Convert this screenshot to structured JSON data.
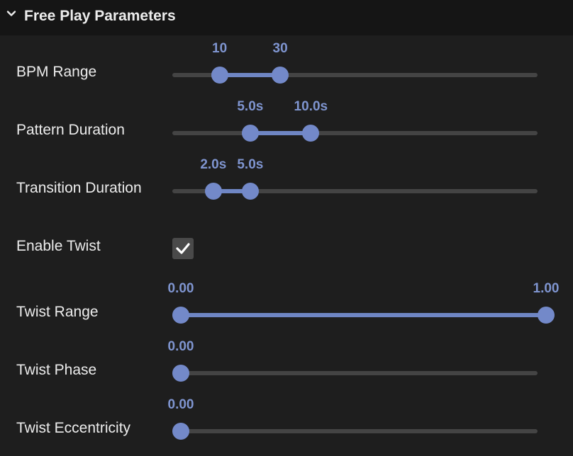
{
  "panel": {
    "title": "Free Play Parameters",
    "collapse_icon": "chevron-down-icon"
  },
  "colors": {
    "accent": "#7389c9",
    "value_text": "#7f95d0",
    "track": "#444444",
    "background": "#1e1e1e",
    "header_background": "#151515"
  },
  "params": {
    "bpm_range": {
      "label": "BPM Range",
      "type": "range",
      "low": "10",
      "high": "30",
      "low_fraction": 0.106,
      "high_fraction": 0.272
    },
    "pattern_duration": {
      "label": "Pattern Duration",
      "type": "range",
      "low": "5.0s",
      "high": "10.0s",
      "low_fraction": 0.19,
      "high_fraction": 0.356
    },
    "transition_duration": {
      "label": "Transition Duration",
      "type": "range",
      "low": "2.0s",
      "high": "5.0s",
      "low_fraction": 0.089,
      "high_fraction": 0.19
    },
    "enable_twist": {
      "label": "Enable Twist",
      "type": "checkbox",
      "checked": true
    },
    "twist_range": {
      "label": "Twist Range",
      "type": "range",
      "low": "0.00",
      "high": "1.00",
      "low_fraction": 0.0,
      "high_fraction": 1.0
    },
    "twist_phase": {
      "label": "Twist Phase",
      "type": "single",
      "value": "0.00",
      "fraction": 0.0
    },
    "twist_eccentricity": {
      "label": "Twist Eccentricity",
      "type": "single",
      "value": "0.00",
      "fraction": 0.0
    }
  }
}
